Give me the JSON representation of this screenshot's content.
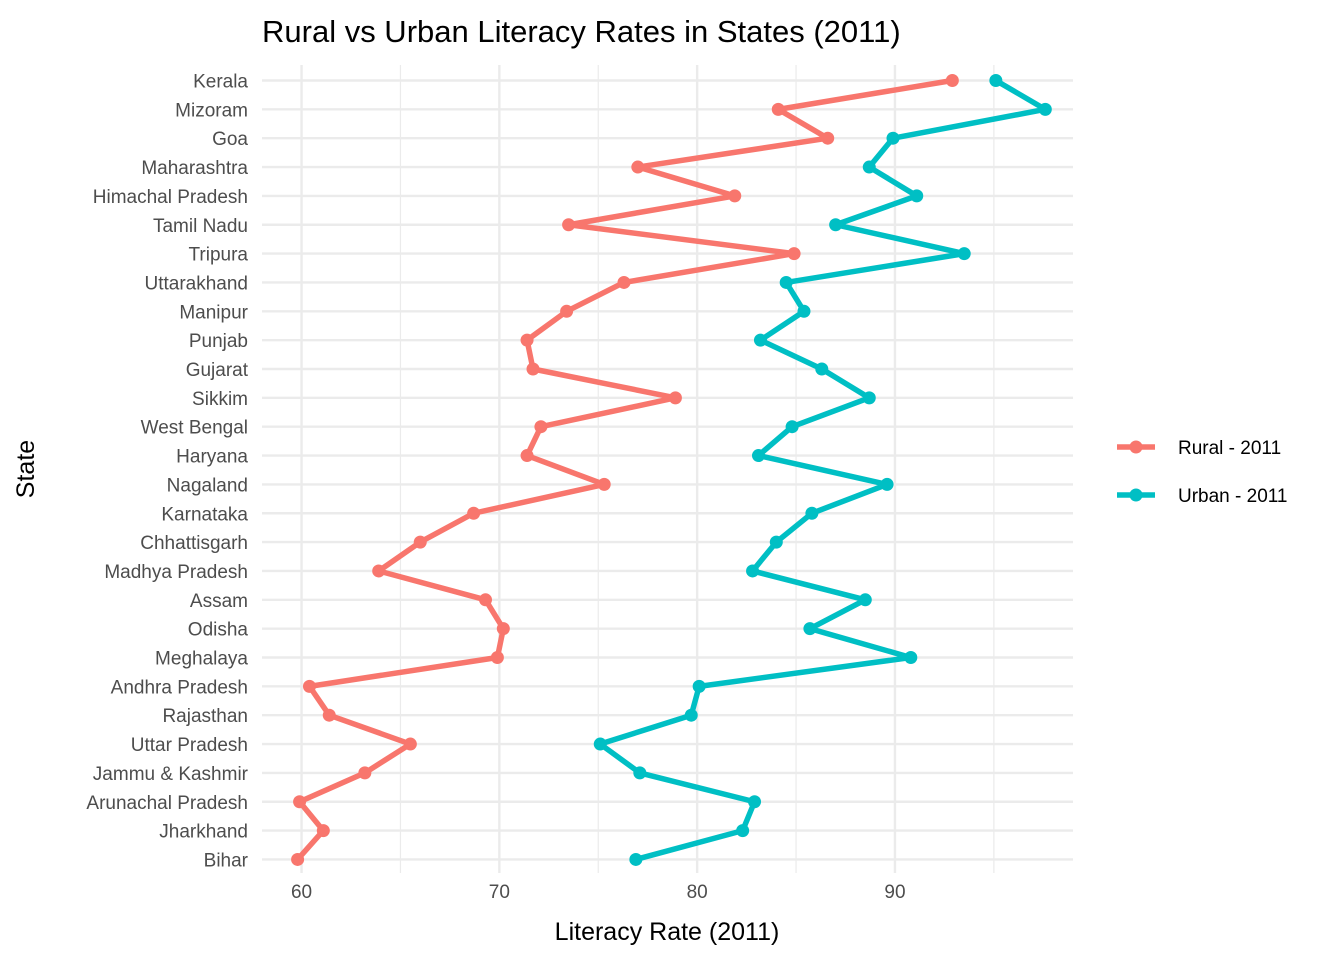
{
  "chart_data": {
    "type": "line",
    "title": "Rural vs Urban Literacy Rates in States (2011)",
    "xlabel": "Literacy Rate (2011)",
    "ylabel": "State",
    "xlim": [
      58.0,
      99.0
    ],
    "xticks": [
      60,
      70,
      80,
      90
    ],
    "grid": true,
    "legend_position": "right",
    "categories": [
      "Kerala",
      "Mizoram",
      "Goa",
      "Maharashtra",
      "Himachal Pradesh",
      "Tamil Nadu",
      "Tripura",
      "Uttarakhand",
      "Manipur",
      "Punjab",
      "Gujarat",
      "Sikkim",
      "West Bengal",
      "Haryana",
      "Nagaland",
      "Karnataka",
      "Chhattisgarh",
      "Madhya Pradesh",
      "Assam",
      "Odisha",
      "Meghalaya",
      "Andhra Pradesh",
      "Rajasthan",
      "Uttar Pradesh",
      "Jammu & Kashmir",
      "Arunachal Pradesh",
      "Jharkhand",
      "Bihar"
    ],
    "series": [
      {
        "name": "Rural - 2011",
        "color": "#F8766D",
        "values": [
          92.9,
          84.1,
          86.6,
          77.0,
          81.9,
          73.5,
          84.9,
          76.3,
          73.4,
          71.4,
          71.7,
          78.9,
          72.1,
          71.4,
          75.3,
          68.7,
          66.0,
          63.9,
          69.3,
          70.2,
          69.9,
          60.4,
          61.4,
          65.5,
          63.2,
          59.9,
          61.1,
          59.8
        ]
      },
      {
        "name": "Urban - 2011",
        "color": "#00BFC4",
        "values": [
          95.1,
          97.6,
          89.9,
          88.7,
          91.1,
          87.0,
          93.5,
          84.5,
          85.4,
          83.2,
          86.3,
          88.7,
          84.8,
          83.1,
          89.6,
          85.8,
          84.0,
          82.8,
          88.5,
          85.7,
          90.8,
          80.1,
          79.7,
          75.1,
          77.1,
          82.9,
          82.3,
          76.9
        ]
      }
    ]
  }
}
